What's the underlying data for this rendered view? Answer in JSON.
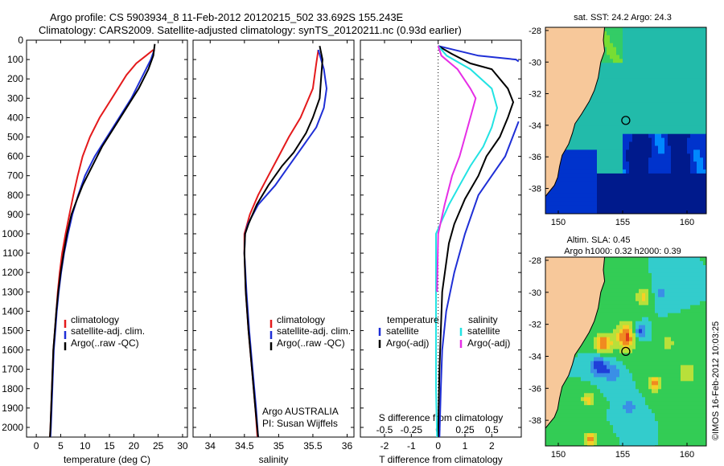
{
  "figure": {
    "title_line1": "Argo profile: CS 5903934_8 11-Feb-2012 20120215_502 33.692S 155.243E",
    "title_line2": "Climatology: CARS2009. Satellite-adjusted climatology: synTS_20120211.nc (0.93d earlier)",
    "credit": "©IMOS 16-Feb-2012 10:03:25",
    "argo_owner_line1": "Argo AUSTRALIA",
    "argo_owner_line2": "PI: Susan Wijffels"
  },
  "colors": {
    "climatology": "#e41a1c",
    "satellite_adj": "#1f2fd6",
    "argo": "#000000",
    "salinity_satellite": "#22e3e3",
    "salinity_argo": "#e62ee6",
    "land": "#f7c89a"
  },
  "legend": {
    "climatology": "climatology",
    "satellite_adj": "satellite-adj. clim.",
    "argo": "Argo(..raw -QC)",
    "temperature": "temperature",
    "salinity": "salinity",
    "satellite": "satellite",
    "argo_adj": "Argo(-adj)"
  },
  "maps": [
    {
      "title": "sat. SST: 24.2 Argo: 24.3",
      "field": "sst",
      "x_ticks": [
        "150",
        "155",
        "160"
      ],
      "y_ticks": [
        "-28",
        "-30",
        "-32",
        "-34",
        "-36",
        "-38"
      ],
      "marker": {
        "lon": 155.243,
        "lat": -33.692
      }
    },
    {
      "title_line1": "Altim. SLA: 0.45",
      "title_line2": "Argo h1000: 0.32 h2000: 0.39",
      "field": "sla",
      "x_ticks": [
        "150",
        "155",
        "160"
      ],
      "y_ticks": [
        "-28",
        "-30",
        "-32",
        "-34",
        "-36",
        "-38"
      ],
      "marker": {
        "lon": 155.243,
        "lat": -33.692
      }
    }
  ],
  "chart_data": [
    {
      "type": "line",
      "name": "temperature",
      "xlabel": "temperature (deg C)",
      "x_ticks": [
        "0",
        "5",
        "10",
        "15",
        "20",
        "25",
        "30"
      ],
      "y_ticks": [
        "0",
        "100",
        "200",
        "300",
        "400",
        "500",
        "600",
        "700",
        "800",
        "900",
        "1000",
        "1100",
        "1200",
        "1300",
        "1400",
        "1500",
        "1600",
        "1700",
        "1800",
        "1900",
        "2000"
      ],
      "xlim": [
        -2,
        31
      ],
      "ylim": [
        2050,
        0
      ],
      "series": [
        {
          "name": "climatology",
          "color": "#e41a1c",
          "points": [
            [
              24,
              50
            ],
            [
              22.5,
              80
            ],
            [
              20.5,
              120
            ],
            [
              18.5,
              180
            ],
            [
              15.5,
              300
            ],
            [
              13,
              400
            ],
            [
              11,
              500
            ],
            [
              9.5,
              600
            ],
            [
              8.5,
              700
            ],
            [
              7.6,
              800
            ],
            [
              6.8,
              900
            ],
            [
              6,
              1000
            ],
            [
              5.3,
              1100
            ],
            [
              4.8,
              1200
            ],
            [
              4.4,
              1300
            ],
            [
              4.1,
              1400
            ],
            [
              3.8,
              1500
            ],
            [
              3.5,
              1600
            ],
            [
              3.2,
              1800
            ],
            [
              2.9,
              2000
            ],
            [
              2.8,
              2050
            ]
          ]
        },
        {
          "name": "satellite-adj. clim.",
          "color": "#1f2fd6",
          "points": [
            [
              24.2,
              50
            ],
            [
              23.5,
              100
            ],
            [
              21.5,
              200
            ],
            [
              19.5,
              300
            ],
            [
              17,
              400
            ],
            [
              14.5,
              500
            ],
            [
              12,
              600
            ],
            [
              10,
              700
            ],
            [
              8.6,
              800
            ],
            [
              7.4,
              900
            ],
            [
              6.5,
              1000
            ],
            [
              5.7,
              1100
            ],
            [
              5.1,
              1200
            ],
            [
              4.6,
              1300
            ],
            [
              4.2,
              1400
            ],
            [
              3.9,
              1500
            ],
            [
              3.6,
              1600
            ],
            [
              3.3,
              1800
            ],
            [
              3,
              2000
            ],
            [
              2.9,
              2050
            ]
          ]
        },
        {
          "name": "Argo(..raw -QC)",
          "color": "#000000",
          "points": [
            [
              24.3,
              20
            ],
            [
              24,
              80
            ],
            [
              23,
              150
            ],
            [
              21,
              250
            ],
            [
              18.5,
              350
            ],
            [
              16,
              450
            ],
            [
              13.5,
              550
            ],
            [
              11.5,
              650
            ],
            [
              9.5,
              750
            ],
            [
              8.4,
              820
            ],
            [
              7.2,
              900
            ],
            [
              6.3,
              1000
            ],
            [
              5.6,
              1100
            ],
            [
              5,
              1200
            ],
            [
              4.5,
              1300
            ],
            [
              4.1,
              1400
            ],
            [
              3.8,
              1500
            ],
            [
              3.5,
              1600
            ],
            [
              3.2,
              1800
            ],
            [
              2.9,
              2000
            ],
            [
              2.8,
              2050
            ]
          ]
        }
      ]
    },
    {
      "type": "line",
      "name": "salinity",
      "xlabel": "salinity",
      "x_ticks": [
        "34",
        "34.5",
        "35",
        "35.5",
        "36"
      ],
      "xlim": [
        33.75,
        36.1
      ],
      "ylim": [
        2050,
        0
      ],
      "series": [
        {
          "name": "climatology",
          "color": "#e41a1c",
          "points": [
            [
              35.58,
              50
            ],
            [
              35.55,
              120
            ],
            [
              35.5,
              250
            ],
            [
              35.32,
              400
            ],
            [
              35.15,
              500
            ],
            [
              35,
              600
            ],
            [
              34.85,
              700
            ],
            [
              34.7,
              800
            ],
            [
              34.58,
              900
            ],
            [
              34.5,
              1000
            ],
            [
              34.5,
              1100
            ],
            [
              34.52,
              1300
            ],
            [
              34.56,
              1500
            ],
            [
              34.61,
              1700
            ],
            [
              34.66,
              1900
            ],
            [
              34.69,
              2050
            ]
          ]
        },
        {
          "name": "satellite-adj. clim.",
          "color": "#1f2fd6",
          "points": [
            [
              35.58,
              50
            ],
            [
              35.66,
              150
            ],
            [
              35.7,
              250
            ],
            [
              35.66,
              350
            ],
            [
              35.55,
              450
            ],
            [
              35.35,
              550
            ],
            [
              35.15,
              650
            ],
            [
              34.95,
              750
            ],
            [
              34.7,
              850
            ],
            [
              34.55,
              950
            ],
            [
              34.51,
              1000
            ],
            [
              34.5,
              1100
            ],
            [
              34.53,
              1300
            ],
            [
              34.57,
              1500
            ],
            [
              34.62,
              1700
            ],
            [
              34.67,
              1900
            ],
            [
              34.7,
              2050
            ]
          ]
        },
        {
          "name": "Argo(..raw -QC)",
          "color": "#000000",
          "points": [
            [
              35.6,
              30
            ],
            [
              35.64,
              100
            ],
            [
              35.62,
              200
            ],
            [
              35.6,
              300
            ],
            [
              35.5,
              400
            ],
            [
              35.4,
              480
            ],
            [
              35.22,
              580
            ],
            [
              35.05,
              650
            ],
            [
              34.85,
              750
            ],
            [
              34.68,
              850
            ],
            [
              34.56,
              950
            ],
            [
              34.51,
              1000
            ],
            [
              34.5,
              1100
            ],
            [
              34.52,
              1300
            ],
            [
              34.56,
              1500
            ],
            [
              34.61,
              1700
            ],
            [
              34.66,
              1900
            ],
            [
              34.7,
              2050
            ]
          ]
        }
      ]
    },
    {
      "type": "line",
      "name": "differences",
      "xlabel": "T difference from climatology",
      "xlabel_top": "S difference from climatology",
      "x_ticks": [
        "-2",
        "-1",
        "0",
        "1",
        "2"
      ],
      "x_ticks_top": [
        "-0.5",
        "-0.25",
        "0",
        "0.25",
        "0.5"
      ],
      "xlim": [
        -2.9,
        3.1
      ],
      "ylim": [
        2050,
        0
      ],
      "series": [
        {
          "name": "temperature satellite",
          "color": "#1f2fd6",
          "points": [
            [
              0,
              30
            ],
            [
              1.5,
              80
            ],
            [
              2.9,
              100
            ],
            [
              3,
              110
            ]
          ]
        },
        {
          "name": "temperature satellite (deep)",
          "color": "#1f2fd6",
          "points": [
            [
              3,
              420
            ],
            [
              2.5,
              600
            ],
            [
              2,
              700
            ],
            [
              1.5,
              800
            ],
            [
              1,
              1000
            ],
            [
              0.6,
              1200
            ],
            [
              0.3,
              1400
            ],
            [
              0.15,
              1600
            ],
            [
              0.1,
              1800
            ],
            [
              0.05,
              2050
            ]
          ]
        },
        {
          "name": "Argo(-adj) temperature",
          "color": "#000000",
          "points": [
            [
              0,
              30
            ],
            [
              0.5,
              70
            ],
            [
              1.2,
              120
            ],
            [
              2,
              150
            ],
            [
              2.6,
              250
            ],
            [
              2.8,
              320
            ],
            [
              2.6,
              400
            ],
            [
              2.3,
              500
            ],
            [
              1.8,
              600
            ],
            [
              1.5,
              700
            ],
            [
              1,
              820
            ],
            [
              0.6,
              950
            ],
            [
              0.4,
              1050
            ],
            [
              0.25,
              1200
            ],
            [
              0.15,
              1300
            ],
            [
              0.1,
              1500
            ],
            [
              0.05,
              1700
            ],
            [
              0.02,
              1900
            ],
            [
              0,
              2050
            ]
          ]
        },
        {
          "name": "salinity satellite",
          "color": "#22e3e3",
          "points": [
            [
              0,
              30
            ],
            [
              0.08,
              80
            ],
            [
              0.3,
              150
            ],
            [
              0.5,
              250
            ],
            [
              0.55,
              350
            ],
            [
              0.5,
              450
            ],
            [
              0.42,
              550
            ],
            [
              0.3,
              650
            ],
            [
              0.2,
              750
            ],
            [
              0.1,
              850
            ],
            [
              0.02,
              950
            ],
            [
              -0.02,
              1000
            ],
            [
              -0.02,
              1400
            ],
            [
              -0.02,
              1800
            ],
            [
              -0.01,
              2050
            ]
          ]
        },
        {
          "name": "salinity Argo(-adj)",
          "color": "#e62ee6",
          "points": [
            [
              0,
              30
            ],
            [
              0.03,
              80
            ],
            [
              0.18,
              150
            ],
            [
              0.3,
              250
            ],
            [
              0.35,
              300
            ],
            [
              0.3,
              400
            ],
            [
              0.25,
              500
            ],
            [
              0.2,
              600
            ],
            [
              0.13,
              700
            ],
            [
              0.06,
              850
            ],
            [
              0,
              1000
            ],
            [
              -0.01,
              1300
            ]
          ]
        }
      ]
    }
  ]
}
